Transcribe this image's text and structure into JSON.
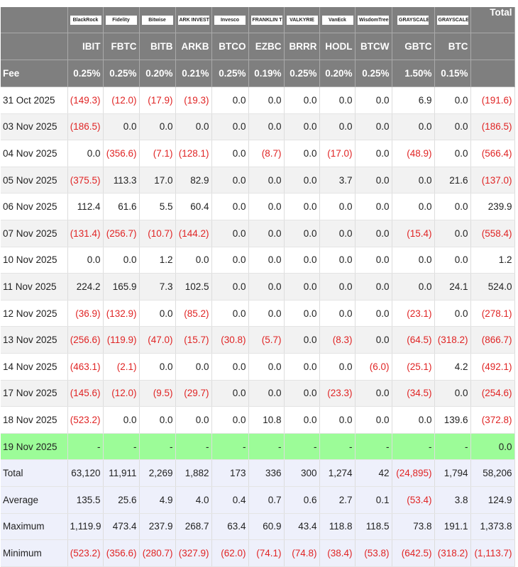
{
  "header": {
    "logos": [
      "BlackRock",
      "Fidelity",
      "Bitwise",
      "ARK INVEST",
      "Invesco",
      "FRANKLIN TEMPLETON",
      "VALKYRIE",
      "VanEck",
      "WisdomTree",
      "GRAYSCALE",
      "GRAYSCALE"
    ],
    "total_label": "Total",
    "tickers": [
      "IBIT",
      "FBTC",
      "BITB",
      "ARKB",
      "BTCO",
      "EZBC",
      "BRRR",
      "HODL",
      "BTCW",
      "GBTC",
      "BTC"
    ],
    "fee_label": "Fee",
    "fees": [
      "0.25%",
      "0.25%",
      "0.20%",
      "0.21%",
      "0.25%",
      "0.19%",
      "0.25%",
      "0.20%",
      "0.25%",
      "1.50%",
      "0.15%"
    ]
  },
  "colors": {
    "header_bg": "#7f7f7f",
    "negative": "#e02424",
    "today_bg": "#9cfc98",
    "summary_bg": "#eef0fb"
  },
  "rows": [
    {
      "date": "31 Oct 2025",
      "values": [
        "(149.3)",
        "(12.0)",
        "(17.9)",
        "(19.3)",
        "0.0",
        "0.0",
        "0.0",
        "0.0",
        "0.0",
        "6.9",
        "0.0",
        "(191.6)"
      ]
    },
    {
      "date": "03 Nov 2025",
      "values": [
        "(186.5)",
        "0.0",
        "0.0",
        "0.0",
        "0.0",
        "0.0",
        "0.0",
        "0.0",
        "0.0",
        "0.0",
        "0.0",
        "(186.5)"
      ]
    },
    {
      "date": "04 Nov 2025",
      "values": [
        "0.0",
        "(356.6)",
        "(7.1)",
        "(128.1)",
        "0.0",
        "(8.7)",
        "0.0",
        "(17.0)",
        "0.0",
        "(48.9)",
        "0.0",
        "(566.4)"
      ]
    },
    {
      "date": "05 Nov 2025",
      "values": [
        "(375.5)",
        "113.3",
        "17.0",
        "82.9",
        "0.0",
        "0.0",
        "0.0",
        "3.7",
        "0.0",
        "0.0",
        "21.6",
        "(137.0)"
      ]
    },
    {
      "date": "06 Nov 2025",
      "values": [
        "112.4",
        "61.6",
        "5.5",
        "60.4",
        "0.0",
        "0.0",
        "0.0",
        "0.0",
        "0.0",
        "0.0",
        "0.0",
        "239.9"
      ]
    },
    {
      "date": "07 Nov 2025",
      "values": [
        "(131.4)",
        "(256.7)",
        "(10.7)",
        "(144.2)",
        "0.0",
        "0.0",
        "0.0",
        "0.0",
        "0.0",
        "(15.4)",
        "0.0",
        "(558.4)"
      ]
    },
    {
      "date": "10 Nov 2025",
      "values": [
        "0.0",
        "0.0",
        "1.2",
        "0.0",
        "0.0",
        "0.0",
        "0.0",
        "0.0",
        "0.0",
        "0.0",
        "0.0",
        "1.2"
      ]
    },
    {
      "date": "11 Nov 2025",
      "values": [
        "224.2",
        "165.9",
        "7.3",
        "102.5",
        "0.0",
        "0.0",
        "0.0",
        "0.0",
        "0.0",
        "0.0",
        "24.1",
        "524.0"
      ]
    },
    {
      "date": "12 Nov 2025",
      "values": [
        "(36.9)",
        "(132.9)",
        "0.0",
        "(85.2)",
        "0.0",
        "0.0",
        "0.0",
        "0.0",
        "0.0",
        "(23.1)",
        "0.0",
        "(278.1)"
      ]
    },
    {
      "date": "13 Nov 2025",
      "values": [
        "(256.6)",
        "(119.9)",
        "(47.0)",
        "(15.7)",
        "(30.8)",
        "(5.7)",
        "0.0",
        "(8.3)",
        "0.0",
        "(64.5)",
        "(318.2)",
        "(866.7)"
      ]
    },
    {
      "date": "14 Nov 2025",
      "values": [
        "(463.1)",
        "(2.1)",
        "0.0",
        "0.0",
        "0.0",
        "0.0",
        "0.0",
        "0.0",
        "(6.0)",
        "(25.1)",
        "4.2",
        "(492.1)"
      ]
    },
    {
      "date": "17 Nov 2025",
      "values": [
        "(145.6)",
        "(12.0)",
        "(9.5)",
        "(29.7)",
        "0.0",
        "0.0",
        "0.0",
        "(23.3)",
        "0.0",
        "(34.5)",
        "0.0",
        "(254.6)"
      ]
    },
    {
      "date": "18 Nov 2025",
      "values": [
        "(523.2)",
        "0.0",
        "0.0",
        "0.0",
        "0.0",
        "10.8",
        "0.0",
        "0.0",
        "0.0",
        "0.0",
        "139.6",
        "(372.8)"
      ]
    },
    {
      "date": "19 Nov 2025",
      "today": true,
      "values": [
        "-",
        "-",
        "-",
        "-",
        "-",
        "-",
        "-",
        "-",
        "-",
        "-",
        "-",
        "0.0"
      ]
    }
  ],
  "summary": [
    {
      "label": "Total",
      "values": [
        "63,120",
        "11,911",
        "2,269",
        "1,882",
        "173",
        "336",
        "300",
        "1,274",
        "42",
        "(24,895)",
        "1,794",
        "58,206"
      ]
    },
    {
      "label": "Average",
      "values": [
        "135.5",
        "25.6",
        "4.9",
        "4.0",
        "0.4",
        "0.7",
        "0.6",
        "2.7",
        "0.1",
        "(53.4)",
        "3.8",
        "124.9"
      ]
    },
    {
      "label": "Maximum",
      "values": [
        "1,119.9",
        "473.4",
        "237.9",
        "268.7",
        "63.4",
        "60.9",
        "43.4",
        "118.8",
        "118.5",
        "73.8",
        "191.1",
        "1,373.8"
      ]
    },
    {
      "label": "Minimum",
      "values": [
        "(523.2)",
        "(356.6)",
        "(280.7)",
        "(327.9)",
        "(62.0)",
        "(74.1)",
        "(74.8)",
        "(38.4)",
        "(53.8)",
        "(642.5)",
        "(318.2)",
        "(1,113.7)"
      ]
    }
  ]
}
